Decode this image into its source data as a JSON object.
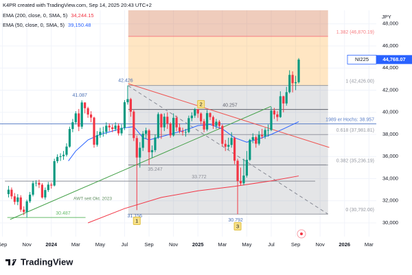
{
  "chart_data": {
    "type": "candlestick",
    "title": "K4PR created with TradingView.com, Sep 14, 2025 20:43 UTC+2",
    "currency": "JPY",
    "symbol": "NI225",
    "last_price": {
      "value": 44768.07,
      "label": "44,768.07"
    },
    "up_color": "#089981",
    "down_color": "#f23645",
    "grid": true,
    "xlim": [
      -4.2,
      26.6
    ],
    "ylim": [
      28760,
      49225
    ],
    "xticks": [
      {
        "value": -4,
        "label": "Sep"
      },
      {
        "value": -2,
        "label": "Nov"
      },
      {
        "value": 0,
        "label": "2024"
      },
      {
        "value": 2,
        "label": "Mar"
      },
      {
        "value": 4,
        "label": "May"
      },
      {
        "value": 6,
        "label": "Jul"
      },
      {
        "value": 8,
        "label": "Sep"
      },
      {
        "value": 10,
        "label": "Nov"
      },
      {
        "value": 12,
        "label": "2025"
      },
      {
        "value": 14,
        "label": "Mar"
      },
      {
        "value": 16,
        "label": "May"
      },
      {
        "value": 18,
        "label": "Jul"
      },
      {
        "value": 20,
        "label": "Sep"
      },
      {
        "value": 22,
        "label": "Nov"
      },
      {
        "value": 24,
        "label": "2026"
      },
      {
        "value": 26,
        "label": "Mar"
      }
    ],
    "yticks": [
      {
        "value": 30000,
        "label": "30,000"
      },
      {
        "value": 32000,
        "label": "32,000"
      },
      {
        "value": 34000,
        "label": "34,000"
      },
      {
        "value": 36000,
        "label": "36,000"
      },
      {
        "value": 38000,
        "label": "38,000"
      },
      {
        "value": 40000,
        "label": "40,000"
      },
      {
        "value": 42000,
        "label": "42,000"
      },
      {
        "value": 44000,
        "label": "44,000"
      },
      {
        "value": 46000,
        "label": "46,000"
      },
      {
        "value": 48000,
        "label": "48,000"
      }
    ],
    "x": [
      -3.5,
      -3.25,
      -3,
      -2.75,
      -2.5,
      -2.25,
      -2,
      -1.75,
      -1.5,
      -1.25,
      -1,
      -0.75,
      -0.5,
      -0.25,
      0,
      0.25,
      0.5,
      0.75,
      1,
      1.25,
      1.5,
      1.75,
      2,
      2.25,
      2.5,
      2.75,
      3,
      3.25,
      3.5,
      3.75,
      4,
      4.25,
      4.5,
      4.75,
      5,
      5.25,
      5.5,
      5.75,
      6,
      6.25,
      6.5,
      6.75,
      7,
      7.25,
      7.5,
      7.75,
      8,
      8.25,
      8.5,
      8.75,
      9,
      9.25,
      9.5,
      9.75,
      10,
      10.25,
      10.5,
      10.75,
      11,
      11.25,
      11.5,
      11.75,
      12,
      12.25,
      12.5,
      12.75,
      13,
      13.25,
      13.5,
      13.75,
      14,
      14.25,
      14.5,
      14.75,
      15,
      15.25,
      15.5,
      15.75,
      16,
      16.25,
      16.5,
      16.75,
      17,
      17.25,
      17.5,
      17.75,
      18,
      18.25,
      18.5,
      18.75,
      19,
      19.25,
      19.5,
      19.75,
      20,
      20.25
    ],
    "open": [
      32600,
      33000,
      32400,
      31900,
      32300,
      31200,
      30990,
      31950,
      32550,
      33580,
      33620,
      33450,
      32300,
      32970,
      33460,
      33380,
      35580,
      35960,
      36030,
      36160,
      36900,
      38490,
      39100,
      39900,
      38700,
      40890,
      40370,
      39800,
      39520,
      37070,
      37930,
      38230,
      38230,
      38790,
      38640,
      38490,
      38800,
      38100,
      38590,
      40910,
      41190,
      40060,
      37670,
      35910,
      36790,
      38060,
      38360,
      36390,
      36580,
      37720,
      39830,
      38640,
      39600,
      38980,
      37910,
      39500,
      38640,
      38280,
      38200,
      38210,
      39470,
      39700,
      40280,
      39890,
      39190,
      38450,
      39930,
      39570,
      38780,
      39150,
      38770,
      37150,
      36890,
      37050,
      37680,
      35620,
      33780,
      33580,
      34280,
      35700,
      37500,
      37750,
      37160,
      37960,
      37830,
      38400,
      38400,
      40150,
      39810,
      39570,
      41450,
      40800,
      41820,
      43380,
      42630,
      42720
    ],
    "high": [
      33350,
      33200,
      32700,
      32600,
      32500,
      31500,
      32100,
      32800,
      33800,
      33850,
      33900,
      33600,
      33200,
      33700,
      33650,
      35800,
      36200,
      36300,
      36500,
      37200,
      38700,
      39400,
      40100,
      40300,
      41087,
      40900,
      40500,
      40100,
      39600,
      38300,
      38600,
      38700,
      39100,
      39000,
      38900,
      39100,
      39000,
      38900,
      41100,
      42426,
      41300,
      40200,
      37900,
      37300,
      38300,
      38600,
      38500,
      37000,
      38000,
      40000,
      39900,
      39900,
      40000,
      39100,
      39900,
      39700,
      39000,
      38600,
      38500,
      39700,
      40000,
      40400,
      40300,
      40000,
      39400,
      40200,
      40000,
      39700,
      39400,
      39300,
      38900,
      37500,
      37700,
      38200,
      37800,
      35800,
      35000,
      35800,
      36500,
      37600,
      38100,
      37900,
      38300,
      38500,
      38600,
      38900,
      40500,
      40400,
      40100,
      41900,
      41500,
      42300,
      43800,
      43700,
      43300,
      44900
    ],
    "low": [
      32300,
      32150,
      31650,
      31600,
      31000,
      30700,
      30487,
      31800,
      32400,
      33300,
      33150,
      32200,
      32100,
      32800,
      33100,
      33300,
      35400,
      35600,
      35700,
      36000,
      36800,
      38200,
      38900,
      38300,
      38500,
      39900,
      39500,
      39100,
      36800,
      36900,
      37700,
      37800,
      38000,
      38300,
      38200,
      38300,
      37900,
      37900,
      38400,
      40700,
      39600,
      37400,
      31156,
      35000,
      36500,
      37600,
      35247,
      35900,
      36400,
      37600,
      37600,
      38300,
      38500,
      37700,
      37800,
      38300,
      38100,
      37900,
      37800,
      38100,
      39200,
      39500,
      39500,
      38900,
      38200,
      38300,
      39300,
      38500,
      38500,
      38500,
      36900,
      36500,
      36600,
      36800,
      35300,
      30792,
      33400,
      33400,
      34100,
      35600,
      37200,
      36800,
      37000,
      37600,
      37600,
      37800,
      38300,
      39400,
      39200,
      39500,
      40000,
      40600,
      41700,
      41800,
      42000,
      42600
    ],
    "close": [
      33000,
      32400,
      31900,
      32300,
      31200,
      30990,
      31950,
      32550,
      33580,
      33620,
      33450,
      32300,
      32970,
      33460,
      33380,
      35580,
      35960,
      36030,
      36160,
      36900,
      38490,
      39100,
      39900,
      38700,
      40890,
      40370,
      39800,
      39520,
      37070,
      37930,
      38230,
      38230,
      38790,
      38640,
      38490,
      38800,
      38100,
      38590,
      40910,
      41190,
      40060,
      37670,
      35910,
      36790,
      38060,
      38360,
      36390,
      36580,
      37720,
      39830,
      38640,
      39600,
      38980,
      37910,
      39500,
      38640,
      38280,
      38200,
      38210,
      39470,
      39700,
      40280,
      39890,
      39190,
      38450,
      39930,
      39570,
      38780,
      39150,
      38770,
      37150,
      36890,
      37050,
      37680,
      35620,
      33780,
      33580,
      34280,
      35700,
      37500,
      37750,
      37160,
      37960,
      37830,
      38400,
      38400,
      40150,
      39810,
      39570,
      41450,
      40800,
      41820,
      43380,
      42630,
      42720,
      44768.07
    ],
    "ema": [
      {
        "name": "EMA (200, close, 0, SMA, 5)",
        "color": "#f23645",
        "last_value": {
          "value": 34244.15,
          "label": "34,244.15"
        },
        "x": [
          3,
          6,
          9,
          12,
          15,
          18,
          20.25
        ],
        "values": [
          30000,
          31300,
          32300,
          32900,
          33300,
          33800,
          34244.15
        ]
      },
      {
        "name": "EMA (50, close, 0, SMA, 5)",
        "color": "#2962ff",
        "last_value": {
          "value": 39150.48,
          "label": "39,150.48"
        },
        "x": [
          1.4,
          2,
          3,
          4,
          5,
          6,
          6.75,
          7.5,
          8,
          9,
          10,
          11,
          12,
          13,
          14,
          15,
          16,
          17,
          18,
          19,
          20.25
        ],
        "values": [
          35600,
          36500,
          37500,
          38000,
          38300,
          38600,
          38700,
          37700,
          37500,
          37800,
          38100,
          38400,
          38800,
          38900,
          38500,
          37700,
          37300,
          37600,
          38000,
          38500,
          39150.48
        ]
      }
    ],
    "fibonacci": {
      "x": [
        6.3,
        22.65
      ],
      "levels": [
        {
          "value": 30792,
          "label": "0 (30,792.00)"
        },
        {
          "value": 35236.19,
          "label": "0.382 (35,236.19)"
        },
        {
          "value": 37981.81,
          "label": "0.618 (37,981.81)"
        },
        {
          "value": 42426,
          "label": "1 (42,426.00)"
        },
        {
          "value": 46870.19,
          "label": "1.382 (46,870.19)"
        }
      ]
    },
    "hlines": [
      {
        "value": 40257,
        "label": "40.257",
        "x": [
          6.3,
          22.65
        ],
        "color": "#5d606b"
      },
      {
        "value": 38957,
        "label": "1989 er Hochs: 38.957",
        "x": [
          -4.2,
          26.6
        ],
        "color": "#5b7fc7"
      },
      {
        "value": 33772,
        "label": "33.772",
        "x": [
          -3.8,
          21.6
        ],
        "color": "#8a8d96"
      },
      {
        "value": 35247,
        "label": "35.247",
        "x": [
          6.3,
          22.5
        ],
        "color": "#8a8d96"
      },
      {
        "value": 30487,
        "label": "30.487",
        "x": [
          -3.6,
          2.8
        ],
        "color": "#66bb6a"
      }
    ],
    "trendlines": [
      {
        "label": "AWT seit Okt. 2023",
        "color": "#43a047",
        "dash": false,
        "x": [
          -3.37,
          17.98
        ],
        "y": [
          30310,
          40540
        ]
      },
      {
        "color": "#ef5350",
        "dash": false,
        "x": [
          6.29,
          22.75
        ],
        "y": [
          42590,
          36820
        ]
      },
      {
        "color": "#868993",
        "dash": true,
        "x": [
          6.29,
          22.64
        ],
        "y": [
          42400,
          30800
        ]
      }
    ],
    "point_labels": [
      {
        "label": "42.426",
        "x": 6.25,
        "y": 42426
      },
      {
        "label": "41.087",
        "x": 2.5,
        "y": 41087
      },
      {
        "label": "31.156",
        "x": 7,
        "y": 31156
      },
      {
        "label": "30.792",
        "x": 15.25,
        "y": 30792
      }
    ],
    "markers": [
      {
        "label": "1",
        "x": 7
      },
      {
        "label": "2",
        "x": 12.25
      },
      {
        "label": "3",
        "x": 15.25
      }
    ]
  },
  "brand": "TradingView"
}
